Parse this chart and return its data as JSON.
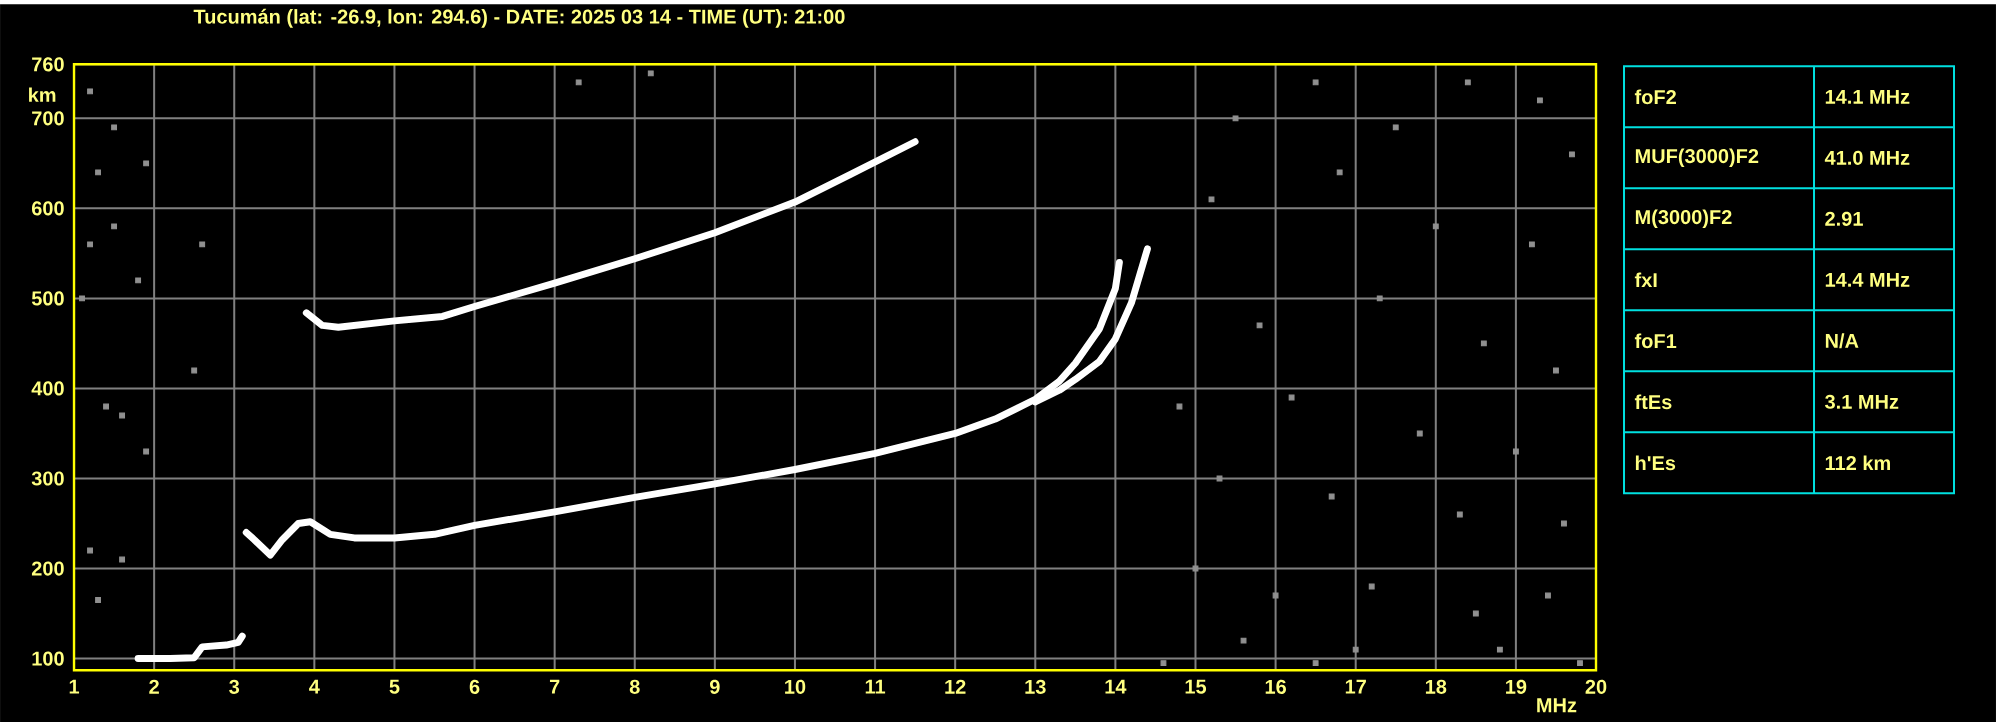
{
  "chart_data": {
    "type": "line",
    "title": "Tucumán (lat: -26.9, lon: 294.6) - DATE: 2025 03 14 - TIME (UT): 21:00",
    "xlabel": "MHz",
    "ylabel": "km",
    "xlim": [
      1,
      20
    ],
    "ylim": [
      87,
      760
    ],
    "xticks": [
      1,
      2,
      3,
      4,
      5,
      6,
      7,
      8,
      9,
      10,
      11,
      12,
      13,
      14,
      15,
      16,
      17,
      18,
      19,
      20
    ],
    "yticks": [
      100,
      200,
      300,
      400,
      500,
      600,
      700,
      760
    ],
    "grid": true,
    "annotations": [
      "foF2",
      "14.1 MHz",
      "MUF(3000)F2",
      "41.0 MHz",
      "M(3000)F2",
      "2.91",
      "fxI",
      "14.4 MHz",
      "foF1",
      "N/A",
      "ftEs",
      "3.1 MHz",
      "h'Es",
      "112 km"
    ],
    "series": [
      {
        "color": "#ffffff",
        "x": [
          3.15,
          3.25,
          3.45,
          3.6,
          3.8,
          3.95,
          4.2,
          4.5,
          5,
          5.5,
          6,
          7,
          8,
          9,
          10,
          11,
          12,
          12.5,
          13,
          13.3,
          13.5,
          13.8,
          14.0,
          14.05
        ],
        "values": [
          240,
          232,
          215,
          232,
          250,
          252,
          238,
          234,
          234,
          238,
          248,
          263,
          279,
          294,
          310,
          328,
          350,
          366,
          388,
          408,
          428,
          466,
          511,
          540
        ]
      },
      {
        "color": "#ffffff",
        "x": [
          13.0,
          13.3,
          13.5,
          13.8,
          14.0,
          14.2,
          14.35,
          14.4
        ],
        "values": [
          385,
          398,
          410,
          430,
          455,
          495,
          540,
          555
        ]
      },
      {
        "color": "#ffffff",
        "x": [
          1.8,
          2.2,
          2.5,
          2.6,
          2.9,
          3.05,
          3.1
        ],
        "values": [
          100,
          100,
          101,
          113,
          115,
          118,
          125
        ]
      },
      {
        "color": "#ffffff",
        "x": [
          3.9,
          4.1,
          4.3,
          5.0,
          5.6,
          6.0,
          7.0,
          8.0,
          9.0,
          10.0,
          10.7,
          11.5
        ],
        "values": [
          484,
          470,
          468,
          475,
          480,
          491,
          517,
          544,
          573,
          607,
          638,
          674
        ]
      },
      {
        "type": "scatter",
        "marker": "square",
        "color": "#909090",
        "x": [
          1.2,
          1.5,
          1.3,
          1.9,
          1.5,
          1.2,
          2.6,
          1.8,
          1.1,
          1.4,
          1.6,
          1.9,
          1.2,
          1.6,
          2.5,
          1.3,
          7.3,
          8.2,
          15.5,
          16.5,
          17.5,
          18.4,
          19.3,
          19.7,
          15.2,
          16.8,
          18.0,
          19.2,
          15.8,
          17.3,
          18.6,
          19.5,
          14.8,
          16.2,
          17.8,
          19.0,
          15.3,
          16.7,
          18.3,
          19.6,
          15.0,
          16.0,
          17.2,
          18.5,
          19.4,
          15.6,
          17.0,
          18.8,
          14.6,
          16.5,
          19.8
        ],
        "values": [
          730,
          690,
          640,
          650,
          580,
          560,
          560,
          520,
          500,
          380,
          370,
          330,
          220,
          210,
          420,
          165,
          740,
          750,
          700,
          740,
          690,
          740,
          720,
          660,
          610,
          640,
          580,
          560,
          470,
          500,
          450,
          420,
          380,
          390,
          350,
          330,
          300,
          280,
          260,
          250,
          200,
          170,
          180,
          150,
          170,
          120,
          110,
          110,
          95,
          95,
          95
        ]
      }
    ]
  }
}
